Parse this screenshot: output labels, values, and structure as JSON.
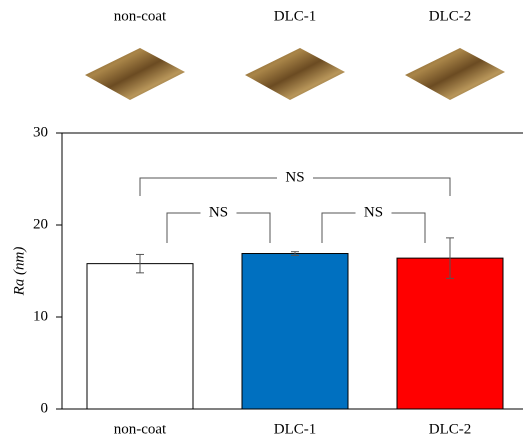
{
  "chart_data": {
    "type": "bar",
    "inset_labels": [
      "non-coat",
      "DLC-1",
      "DLC-2"
    ],
    "ylabel": "Ra (nm)",
    "categories": [
      "non-coat",
      "DLC-1",
      "DLC-2"
    ],
    "values": [
      15.8,
      16.9,
      16.4
    ],
    "errors": [
      1.0,
      0.2,
      2.2
    ],
    "colors": [
      "#ffffff",
      "#0070c0",
      "#ff0000"
    ],
    "ylim": [
      0,
      30
    ],
    "yticks": [
      0,
      10,
      20,
      30
    ],
    "grid": false,
    "annotations": [
      "NS",
      "NS",
      "NS"
    ]
  }
}
